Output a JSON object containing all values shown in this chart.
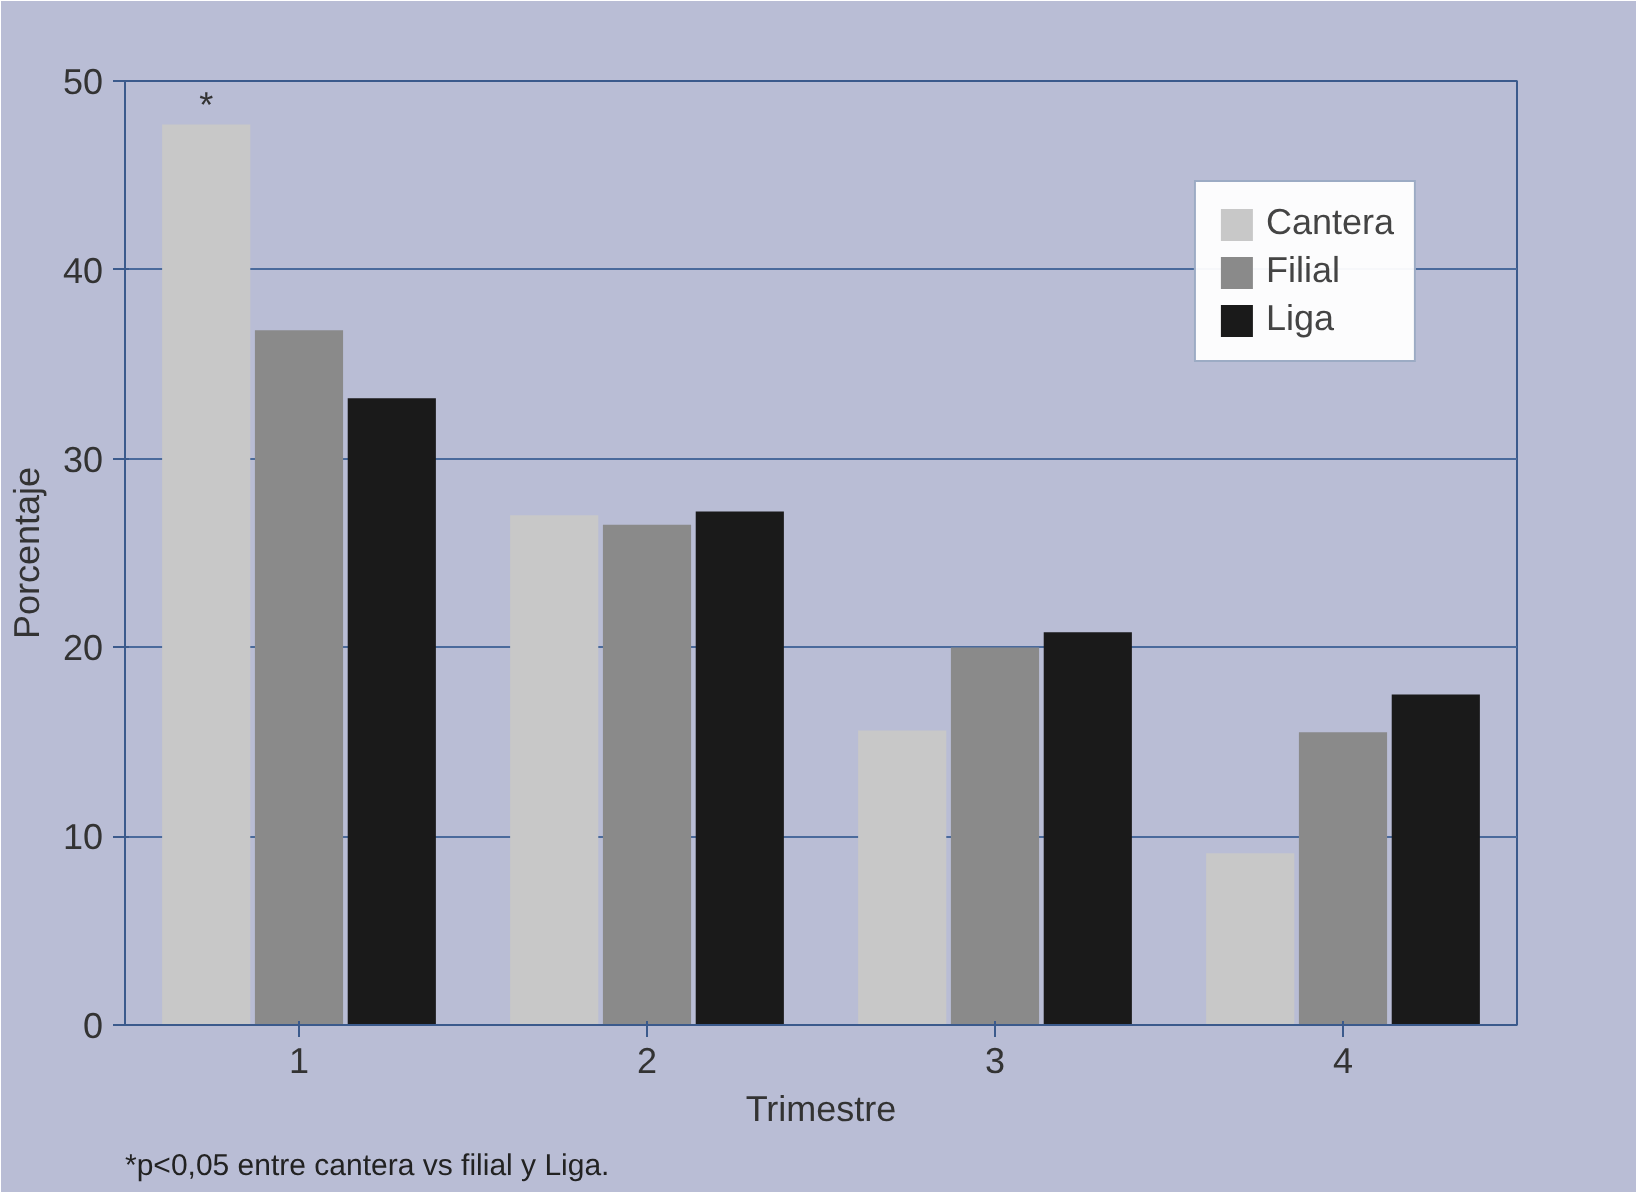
{
  "chart_data": {
    "type": "bar",
    "xlabel": "Trimestre",
    "ylabel": "Porcentaje",
    "categories": [
      "1",
      "2",
      "3",
      "4"
    ],
    "series": [
      {
        "name": "Cantera",
        "color": "#c8c8c8",
        "values": [
          47.7,
          27.0,
          15.6,
          9.1
        ]
      },
      {
        "name": "Filial",
        "color": "#8a8a8a",
        "values": [
          36.8,
          26.5,
          20.0,
          15.5
        ]
      },
      {
        "name": "Liga",
        "color": "#1a1a1a",
        "values": [
          33.2,
          27.2,
          20.8,
          17.5
        ]
      }
    ],
    "ylim": [
      0,
      50
    ],
    "yticks": [
      0,
      10,
      20,
      30,
      40,
      50
    ],
    "grid": "y",
    "legend": "top right",
    "annotations": [
      "*",
      "*p<0,05 entre cantera vs filial y Liga."
    ]
  }
}
